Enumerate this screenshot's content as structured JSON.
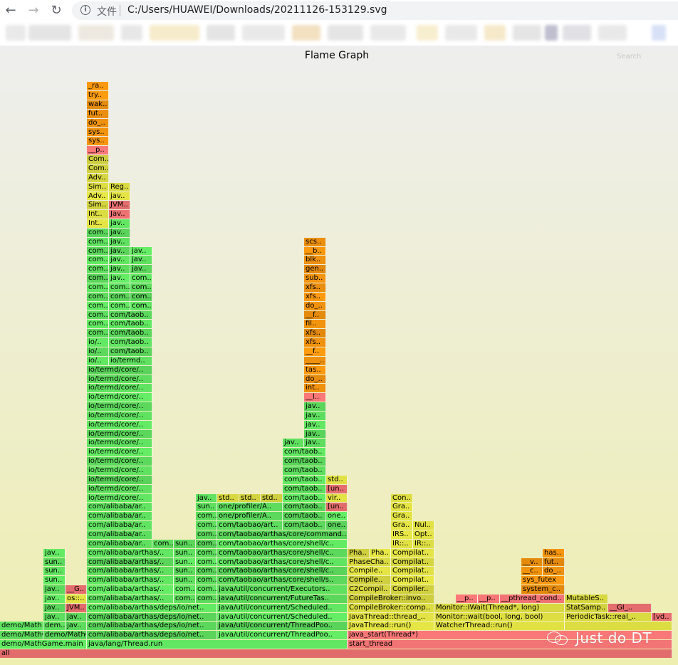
{
  "browser": {
    "back_icon": "arrow-left-icon",
    "forward_icon": "arrow-right-icon",
    "reload_icon": "reload-icon",
    "info_icon": "info-icon",
    "scheme_label": "文件",
    "url": "C:/Users/HUAWEI/Downloads/20211126-153129.svg"
  },
  "graph": {
    "title": "Flame Graph",
    "search_label": "Search"
  },
  "watermark": {
    "icon": "wechat-icon",
    "text": "Just do DT"
  },
  "frames": [
    [
      "all",
      0,
      944,
      0,
      "r"
    ],
    [
      "demo/MathGame.main",
      0,
      122,
      1,
      "g"
    ],
    [
      "java/lang/Thread.run",
      122,
      488,
      1,
      "g"
    ],
    [
      "start_thread",
      488,
      944,
      1,
      "r"
    ],
    [
      "demo/MathGame.run",
      0,
      61,
      2,
      "g"
    ],
    [
      "demo/MathGame..",
      61,
      122,
      2,
      "g"
    ],
    [
      "com/alibaba/arthas/deps/io/net..",
      122,
      305,
      2,
      "g"
    ],
    [
      "java/util/concurrent/ThreadPoo..",
      305,
      488,
      2,
      "g"
    ],
    [
      "java_start(Thread*)",
      488,
      944,
      2,
      "r"
    ],
    [
      "demo/Math..",
      0,
      61,
      3,
      "g"
    ],
    [
      "dem..",
      61,
      92,
      3,
      "g"
    ],
    [
      "jav..",
      92,
      122,
      3,
      "g"
    ],
    [
      "com/alibaba/arthas/deps/io/net..",
      122,
      305,
      3,
      "g"
    ],
    [
      "java/util/concurrent/ThreadPoo..",
      305,
      488,
      3,
      "g"
    ],
    [
      "JavaThread::run()",
      488,
      610,
      3,
      "y"
    ],
    [
      "WatcherThread::run()",
      610,
      793,
      3,
      "y"
    ],
    [
      "",
      793,
      944,
      3,
      "y"
    ],
    [
      "jav..",
      61,
      92,
      4,
      "g"
    ],
    [
      "jav..",
      92,
      122,
      4,
      "g"
    ],
    [
      "com/alibaba/arthas/deps/io/net..",
      122,
      305,
      4,
      "g"
    ],
    [
      "java/util/concurrent/Scheduled..",
      305,
      488,
      4,
      "g"
    ],
    [
      "JavaThread::thread_..",
      488,
      610,
      4,
      "y"
    ],
    [
      "Monitor::wait(bool, long, bool)",
      610,
      793,
      4,
      "y"
    ],
    [
      "PeriodicTask::real_..",
      793,
      915,
      4,
      "y"
    ],
    [
      "[vd..",
      915,
      944,
      4,
      "r"
    ],
    [
      "jav..",
      61,
      92,
      5,
      "g"
    ],
    [
      "JVM..",
      92,
      122,
      5,
      "r"
    ],
    [
      "com/alibaba/arthas/deps/io/net..",
      122,
      305,
      5,
      "g"
    ],
    [
      "java/util/concurrent/Scheduled..",
      305,
      488,
      5,
      "g"
    ],
    [
      "CompileBroker::comp..",
      488,
      610,
      5,
      "y"
    ],
    [
      "Monitor::IWait(Thread*, long)",
      610,
      793,
      5,
      "y"
    ],
    [
      "StatSamp..",
      793,
      854,
      5,
      "y"
    ],
    [
      "__GI_..",
      854,
      915,
      5,
      "r"
    ],
    [
      "jav..",
      61,
      92,
      6,
      "g"
    ],
    [
      "os::..",
      92,
      122,
      6,
      "y"
    ],
    [
      "com/alibaba/arthas/..",
      122,
      244,
      6,
      "g"
    ],
    [
      "com..",
      244,
      275,
      6,
      "g"
    ],
    [
      "com..",
      275,
      305,
      6,
      "g"
    ],
    [
      "java/util/concurrent/FutureTas..",
      305,
      488,
      6,
      "g"
    ],
    [
      "CompileBroker::invo..",
      488,
      610,
      6,
      "y"
    ],
    [
      "__p..",
      640,
      671,
      6,
      "r"
    ],
    [
      "__p..",
      671,
      702,
      6,
      "r"
    ],
    [
      "__pthread_cond..",
      702,
      793,
      6,
      "r"
    ],
    [
      "MutableS..",
      793,
      854,
      6,
      "y"
    ],
    [
      "jav..",
      61,
      92,
      7,
      "g"
    ],
    [
      "__G..",
      92,
      122,
      7,
      "r"
    ],
    [
      "com/alibaba/arthas/..",
      122,
      244,
      7,
      "g"
    ],
    [
      "com..",
      244,
      275,
      7,
      "g"
    ],
    [
      "com..",
      275,
      305,
      7,
      "g"
    ],
    [
      "java/util/concurrent/Executors..",
      305,
      488,
      7,
      "g"
    ],
    [
      "C2Compil..",
      488,
      549,
      7,
      "y"
    ],
    [
      "Compiler..",
      549,
      610,
      7,
      "y"
    ],
    [
      "system_c..",
      732,
      793,
      7,
      "o"
    ],
    [
      "sun..",
      61,
      92,
      8,
      "g"
    ],
    [
      "com/alibaba/arthas/..",
      122,
      244,
      8,
      "g"
    ],
    [
      "sun..",
      244,
      275,
      8,
      "g"
    ],
    [
      "com..",
      275,
      305,
      8,
      "g"
    ],
    [
      "com/taobao/arthas/core/shell/s..",
      305,
      488,
      8,
      "g"
    ],
    [
      "Compile..",
      488,
      549,
      8,
      "y"
    ],
    [
      "Compilat..",
      549,
      610,
      8,
      "y"
    ],
    [
      "sys_futex",
      732,
      793,
      8,
      "o"
    ],
    [
      "sun..",
      61,
      92,
      9,
      "g"
    ],
    [
      "com/alibaba/arthas/..",
      122,
      244,
      9,
      "g"
    ],
    [
      "sun..",
      244,
      275,
      9,
      "g"
    ],
    [
      "com..",
      275,
      305,
      9,
      "g"
    ],
    [
      "com/taobao/arthas/core/shell/c..",
      305,
      488,
      9,
      "g"
    ],
    [
      "Compile..",
      488,
      549,
      9,
      "y"
    ],
    [
      "Compilat..",
      549,
      610,
      9,
      "y"
    ],
    [
      "__c..",
      732,
      762,
      9,
      "o"
    ],
    [
      "do_..",
      762,
      793,
      9,
      "o"
    ],
    [
      "sun..",
      61,
      92,
      10,
      "g"
    ],
    [
      "com/alibaba/arthas/..",
      122,
      244,
      10,
      "g"
    ],
    [
      "sun..",
      244,
      275,
      10,
      "g"
    ],
    [
      "com..",
      275,
      305,
      10,
      "g"
    ],
    [
      "com/taobao/arthas/core/shell/c..",
      305,
      488,
      10,
      "g"
    ],
    [
      "PhaseCha..",
      488,
      549,
      10,
      "y"
    ],
    [
      "Compilat..",
      549,
      610,
      10,
      "y"
    ],
    [
      "__v..",
      732,
      762,
      10,
      "o"
    ],
    [
      "fut..",
      762,
      793,
      10,
      "o"
    ],
    [
      "jav..",
      61,
      92,
      11,
      "g"
    ],
    [
      "com/alibaba/arthas/..",
      122,
      244,
      11,
      "g"
    ],
    [
      "sun..",
      244,
      275,
      11,
      "g"
    ],
    [
      "com..",
      275,
      305,
      11,
      "g"
    ],
    [
      "com/taobao/arthas/core/shell/c..",
      305,
      488,
      11,
      "g"
    ],
    [
      "Pha..",
      488,
      519,
      11,
      "y"
    ],
    [
      "Pha..",
      519,
      549,
      11,
      "y"
    ],
    [
      "Compilat..",
      549,
      610,
      11,
      "y"
    ],
    [
      "has..",
      762,
      793,
      11,
      "o"
    ],
    [
      "com/alibaba/ar..",
      122,
      214,
      12,
      "g"
    ],
    [
      "com..",
      214,
      244,
      12,
      "g"
    ],
    [
      "sun..",
      244,
      275,
      12,
      "g"
    ],
    [
      "com..",
      275,
      305,
      12,
      "g"
    ],
    [
      "com/taobao/arthas/core/shell/c..",
      305,
      488,
      12,
      "g"
    ],
    [
      "IR::..",
      549,
      580,
      12,
      "y"
    ],
    [
      "IR::..",
      580,
      610,
      12,
      "y"
    ],
    [
      "com/alibaba/ar..",
      122,
      214,
      13,
      "g"
    ],
    [
      "com..",
      275,
      305,
      13,
      "g"
    ],
    [
      "com/taobao/arthas/core/command..",
      305,
      488,
      13,
      "g"
    ],
    [
      "IRS..",
      549,
      580,
      13,
      "y"
    ],
    [
      "Opt..",
      580,
      610,
      13,
      "y"
    ],
    [
      "com/alibaba/ar..",
      122,
      214,
      14,
      "g"
    ],
    [
      "com..",
      275,
      305,
      14,
      "g"
    ],
    [
      "com/taobao/art..",
      305,
      397,
      14,
      "g"
    ],
    [
      "com/taob..",
      397,
      458,
      14,
      "g"
    ],
    [
      "one..",
      458,
      488,
      14,
      "g"
    ],
    [
      "Gra..",
      549,
      580,
      14,
      "y"
    ],
    [
      "Nul..",
      580,
      610,
      14,
      "y"
    ],
    [
      "com/alibaba/ar..",
      122,
      214,
      15,
      "g"
    ],
    [
      "com..",
      275,
      305,
      15,
      "g"
    ],
    [
      "one/profiler/A..",
      305,
      397,
      15,
      "g"
    ],
    [
      "com/taob..",
      397,
      458,
      15,
      "g"
    ],
    [
      "one..",
      458,
      488,
      15,
      "g"
    ],
    [
      "Gra..",
      549,
      580,
      15,
      "y"
    ],
    [
      "com/alibaba/ar..",
      122,
      214,
      16,
      "g"
    ],
    [
      "sun..",
      275,
      305,
      16,
      "g"
    ],
    [
      "one/profiler/A..",
      305,
      397,
      16,
      "g"
    ],
    [
      "com/taob..",
      397,
      458,
      16,
      "g"
    ],
    [
      "[un..",
      458,
      488,
      16,
      "r"
    ],
    [
      "Gra..",
      549,
      580,
      16,
      "y"
    ],
    [
      "io/termd/core/..",
      122,
      214,
      17,
      "g"
    ],
    [
      "jav..",
      275,
      305,
      17,
      "g"
    ],
    [
      "std..",
      305,
      336,
      17,
      "y"
    ],
    [
      "std..",
      336,
      366,
      17,
      "y"
    ],
    [
      "std..",
      366,
      397,
      17,
      "y"
    ],
    [
      "com/taob..",
      397,
      458,
      17,
      "g"
    ],
    [
      "vir..",
      458,
      488,
      17,
      "y"
    ],
    [
      "Con..",
      549,
      580,
      17,
      "y"
    ],
    [
      "io/termd/core/..",
      122,
      214,
      18,
      "g"
    ],
    [
      "com/taob..",
      397,
      458,
      18,
      "g"
    ],
    [
      "[un..",
      458,
      488,
      18,
      "r"
    ],
    [
      "io/termd/core/..",
      122,
      214,
      19,
      "g"
    ],
    [
      "com/taob..",
      397,
      458,
      19,
      "g"
    ],
    [
      "std..",
      458,
      488,
      19,
      "y"
    ],
    [
      "io/termd/core/..",
      122,
      214,
      20,
      "g"
    ],
    [
      "com/taob..",
      397,
      458,
      20,
      "g"
    ],
    [
      "io/termd/core/..",
      122,
      214,
      21,
      "g"
    ],
    [
      "com/taob..",
      397,
      458,
      21,
      "g"
    ],
    [
      "io/termd/core/..",
      122,
      214,
      22,
      "g"
    ],
    [
      "com/taob..",
      397,
      458,
      22,
      "g"
    ],
    [
      "io/termd/core/..",
      122,
      214,
      23,
      "g"
    ],
    [
      "jav..",
      397,
      427,
      23,
      "g"
    ],
    [
      "jav..",
      427,
      458,
      23,
      "g"
    ],
    [
      "io/termd/core/..",
      122,
      214,
      24,
      "g"
    ],
    [
      "jav..",
      427,
      458,
      24,
      "g"
    ],
    [
      "io/termd/core/..",
      122,
      214,
      25,
      "g"
    ],
    [
      "jav..",
      427,
      458,
      25,
      "g"
    ],
    [
      "io/termd/core/..",
      122,
      214,
      26,
      "g"
    ],
    [
      "jav..",
      427,
      458,
      26,
      "g"
    ],
    [
      "io/termd/core/..",
      122,
      214,
      27,
      "g"
    ],
    [
      "jav..",
      427,
      458,
      27,
      "g"
    ],
    [
      "io/termd/core/..",
      122,
      214,
      28,
      "g"
    ],
    [
      "__l..",
      427,
      458,
      28,
      "r"
    ],
    [
      "io/termd/core/..",
      122,
      214,
      29,
      "g"
    ],
    [
      "int..",
      427,
      458,
      29,
      "o"
    ],
    [
      "io/termd/core/..",
      122,
      214,
      30,
      "g"
    ],
    [
      "do_..",
      427,
      458,
      30,
      "o"
    ],
    [
      "io/termd/core/..",
      122,
      214,
      31,
      "g"
    ],
    [
      "tas..",
      427,
      458,
      31,
      "o"
    ],
    [
      "io/..",
      122,
      153,
      32,
      "g"
    ],
    [
      "io/termd..",
      153,
      214,
      32,
      "g"
    ],
    [
      "____..",
      427,
      458,
      32,
      "o"
    ],
    [
      "io/..",
      122,
      153,
      33,
      "g"
    ],
    [
      "com/taob..",
      153,
      214,
      33,
      "g"
    ],
    [
      "__f..",
      427,
      458,
      33,
      "o"
    ],
    [
      "io/..",
      122,
      153,
      34,
      "g"
    ],
    [
      "com/taob..",
      153,
      214,
      34,
      "g"
    ],
    [
      "xfs..",
      427,
      458,
      34,
      "o"
    ],
    [
      "com..",
      122,
      153,
      35,
      "g"
    ],
    [
      "com/taob..",
      153,
      214,
      35,
      "g"
    ],
    [
      "xfs..",
      427,
      458,
      35,
      "o"
    ],
    [
      "com..",
      122,
      153,
      36,
      "g"
    ],
    [
      "com/taob..",
      153,
      214,
      36,
      "g"
    ],
    [
      "fil..",
      427,
      458,
      36,
      "o"
    ],
    [
      "com..",
      122,
      153,
      37,
      "g"
    ],
    [
      "com/taob..",
      153,
      214,
      37,
      "g"
    ],
    [
      "__f..",
      427,
      458,
      37,
      "o"
    ],
    [
      "com..",
      122,
      153,
      38,
      "g"
    ],
    [
      "com..",
      153,
      183,
      38,
      "g"
    ],
    [
      "com..",
      183,
      214,
      38,
      "g"
    ],
    [
      "do_..",
      427,
      458,
      38,
      "o"
    ],
    [
      "com..",
      122,
      153,
      39,
      "g"
    ],
    [
      "com..",
      153,
      183,
      39,
      "g"
    ],
    [
      "com..",
      183,
      214,
      39,
      "g"
    ],
    [
      "xfs..",
      427,
      458,
      39,
      "o"
    ],
    [
      "com..",
      122,
      153,
      40,
      "g"
    ],
    [
      "com..",
      153,
      183,
      40,
      "g"
    ],
    [
      "com..",
      183,
      214,
      40,
      "g"
    ],
    [
      "xfs..",
      427,
      458,
      40,
      "o"
    ],
    [
      "com..",
      122,
      153,
      41,
      "g"
    ],
    [
      "jav..",
      153,
      183,
      41,
      "g"
    ],
    [
      "com..",
      183,
      214,
      41,
      "g"
    ],
    [
      "sub..",
      427,
      458,
      41,
      "o"
    ],
    [
      "com..",
      122,
      153,
      42,
      "g"
    ],
    [
      "jav..",
      153,
      183,
      42,
      "g"
    ],
    [
      "jav..",
      183,
      214,
      42,
      "g"
    ],
    [
      "gen..",
      427,
      458,
      42,
      "o"
    ],
    [
      "com..",
      122,
      153,
      43,
      "g"
    ],
    [
      "jav..",
      153,
      183,
      43,
      "g"
    ],
    [
      "jav..",
      183,
      214,
      43,
      "g"
    ],
    [
      "blk..",
      427,
      458,
      43,
      "o"
    ],
    [
      "com..",
      122,
      153,
      44,
      "g"
    ],
    [
      "jav..",
      153,
      183,
      44,
      "g"
    ],
    [
      "jav..",
      183,
      214,
      44,
      "g"
    ],
    [
      "__b..",
      427,
      458,
      44,
      "o"
    ],
    [
      "com..",
      122,
      153,
      45,
      "g"
    ],
    [
      "jav..",
      153,
      183,
      45,
      "g"
    ],
    [
      "scs..",
      427,
      458,
      45,
      "o"
    ],
    [
      "com..",
      122,
      153,
      46,
      "g"
    ],
    [
      "jav..",
      153,
      183,
      46,
      "g"
    ],
    [
      "Int..",
      122,
      153,
      47,
      "y"
    ],
    [
      "jav..",
      153,
      183,
      47,
      "g"
    ],
    [
      "Int..",
      122,
      153,
      48,
      "y"
    ],
    [
      "Jav..",
      153,
      183,
      48,
      "r"
    ],
    [
      "Sim..",
      122,
      153,
      49,
      "y"
    ],
    [
      "JVM..",
      153,
      183,
      49,
      "r"
    ],
    [
      "Adv..",
      122,
      153,
      50,
      "y"
    ],
    [
      "jav..",
      153,
      183,
      50,
      "y"
    ],
    [
      "Sim..",
      122,
      153,
      51,
      "y"
    ],
    [
      "Reg..",
      153,
      183,
      51,
      "y"
    ],
    [
      "Adv..",
      122,
      153,
      52,
      "y"
    ],
    [
      "Com..",
      122,
      153,
      53,
      "y"
    ],
    [
      "Com..",
      122,
      153,
      54,
      "y"
    ],
    [
      "__p..",
      122,
      153,
      55,
      "r"
    ],
    [
      "sys..",
      122,
      153,
      56,
      "o"
    ],
    [
      "sys..",
      122,
      153,
      57,
      "o"
    ],
    [
      "do_..",
      122,
      153,
      58,
      "o"
    ],
    [
      "fut..",
      122,
      153,
      59,
      "o"
    ],
    [
      "wak..",
      122,
      153,
      60,
      "o"
    ],
    [
      "try..",
      122,
      153,
      61,
      "o"
    ],
    [
      "_ra..",
      122,
      153,
      62,
      "o"
    ]
  ]
}
